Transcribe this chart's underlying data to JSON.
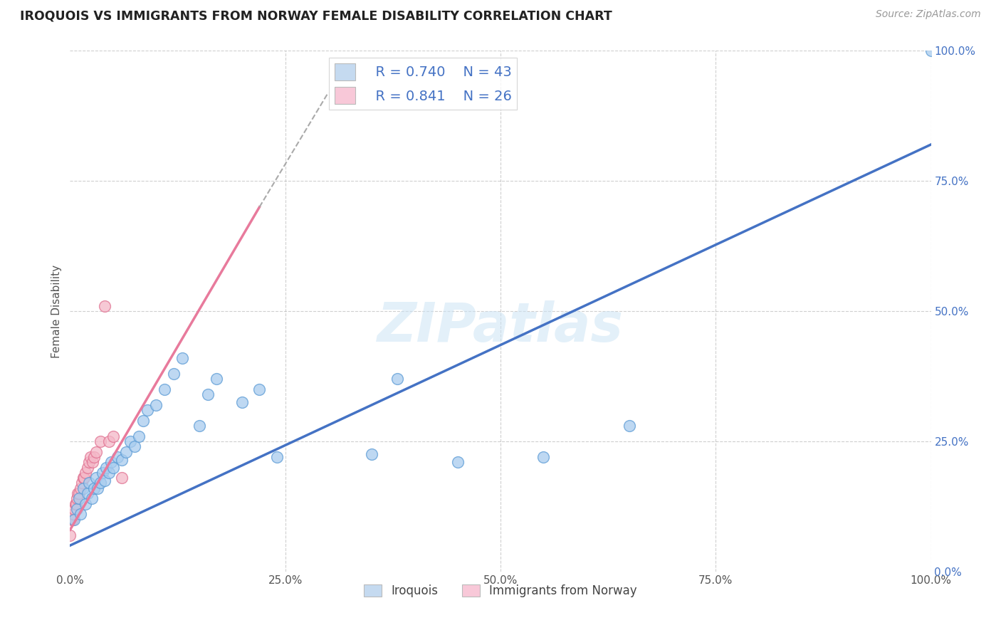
{
  "title": "IROQUOIS VS IMMIGRANTS FROM NORWAY FEMALE DISABILITY CORRELATION CHART",
  "source": "Source: ZipAtlas.com",
  "ylabel": "Female Disability",
  "watermark": "ZIPatlas",
  "xlim": [
    0,
    1.0
  ],
  "ylim": [
    0,
    1.0
  ],
  "xtick_labels": [
    "0.0%",
    "25.0%",
    "50.0%",
    "75.0%",
    "100.0%"
  ],
  "xtick_vals": [
    0.0,
    0.25,
    0.5,
    0.75,
    1.0
  ],
  "ytick_labels": [
    "0.0%",
    "25.0%",
    "50.0%",
    "75.0%",
    "100.0%"
  ],
  "ytick_vals": [
    0.0,
    0.25,
    0.5,
    0.75,
    1.0
  ],
  "iroquois_color": "#a8ccee",
  "norway_color": "#f4b8c8",
  "iroquois_edge_color": "#5b9bd5",
  "norway_edge_color": "#e07090",
  "iroquois_line_color": "#4472c4",
  "norway_line_color": "#e87a9c",
  "iroquois_R": 0.74,
  "iroquois_N": 43,
  "norway_R": 0.841,
  "norway_N": 26,
  "legend_box_iroquois": "#c5daf0",
  "legend_box_norway": "#f8c8d8",
  "legend_text_color": "#4472c4",
  "legend_n_color": "#4472c4",
  "background_color": "#ffffff",
  "grid_color": "#bbbbbb",
  "iroquois_x": [
    0.005,
    0.008,
    0.01,
    0.012,
    0.015,
    0.018,
    0.02,
    0.022,
    0.025,
    0.028,
    0.03,
    0.032,
    0.035,
    0.038,
    0.04,
    0.042,
    0.045,
    0.048,
    0.05,
    0.055,
    0.06,
    0.065,
    0.07,
    0.075,
    0.08,
    0.085,
    0.09,
    0.1,
    0.11,
    0.12,
    0.13,
    0.15,
    0.16,
    0.17,
    0.2,
    0.22,
    0.24,
    0.35,
    0.38,
    0.45,
    0.55,
    0.65,
    1.0
  ],
  "iroquois_y": [
    0.1,
    0.12,
    0.14,
    0.11,
    0.16,
    0.13,
    0.15,
    0.17,
    0.14,
    0.16,
    0.18,
    0.16,
    0.17,
    0.19,
    0.175,
    0.2,
    0.19,
    0.21,
    0.2,
    0.22,
    0.215,
    0.23,
    0.25,
    0.24,
    0.26,
    0.29,
    0.31,
    0.32,
    0.35,
    0.38,
    0.41,
    0.28,
    0.34,
    0.37,
    0.325,
    0.35,
    0.22,
    0.225,
    0.37,
    0.21,
    0.22,
    0.28,
    1.0
  ],
  "norway_x": [
    0.0,
    0.002,
    0.003,
    0.004,
    0.005,
    0.006,
    0.007,
    0.008,
    0.009,
    0.01,
    0.012,
    0.014,
    0.015,
    0.016,
    0.018,
    0.02,
    0.022,
    0.024,
    0.026,
    0.028,
    0.03,
    0.035,
    0.04,
    0.045,
    0.05,
    0.06
  ],
  "norway_y": [
    0.07,
    0.1,
    0.1,
    0.11,
    0.12,
    0.13,
    0.13,
    0.14,
    0.15,
    0.15,
    0.16,
    0.17,
    0.18,
    0.18,
    0.19,
    0.2,
    0.21,
    0.22,
    0.21,
    0.22,
    0.23,
    0.25,
    0.51,
    0.25,
    0.26,
    0.18
  ],
  "norway_line_x_start": 0.0,
  "norway_line_y_start": 0.08,
  "norway_line_x_solid_end": 0.22,
  "norway_line_y_solid_end": 0.7,
  "norway_line_x_dash_end": 0.3,
  "norway_line_y_dash_end": 0.92,
  "iroquois_line_x_start": 0.0,
  "iroquois_line_y_start": 0.05,
  "iroquois_line_x_end": 1.0,
  "iroquois_line_y_end": 0.82
}
